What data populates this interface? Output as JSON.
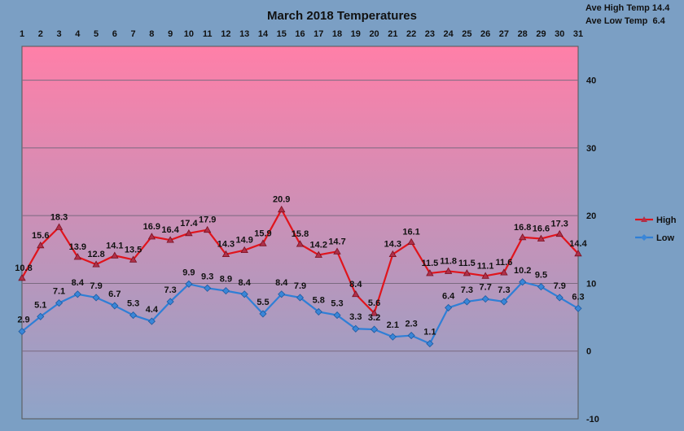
{
  "chart_data": {
    "type": "line",
    "title": "March 2018 Temperatures",
    "stats": [
      "Ave High Temp 14.4",
      "Ave Low Temp  6.4"
    ],
    "x": [
      1,
      2,
      3,
      4,
      5,
      6,
      7,
      8,
      9,
      10,
      11,
      12,
      13,
      14,
      15,
      16,
      17,
      18,
      19,
      20,
      21,
      22,
      23,
      24,
      25,
      26,
      27,
      28,
      29,
      30,
      31
    ],
    "ylim": [
      -10,
      45
    ],
    "yticks": [
      -10,
      0,
      10,
      20,
      30,
      40
    ],
    "grid": true,
    "legend_position": "right",
    "series": [
      {
        "name": "High",
        "color": "#e0141c",
        "marker": "triangle",
        "values": [
          10.8,
          15.6,
          18.3,
          13.9,
          12.8,
          14.1,
          13.5,
          16.9,
          16.4,
          17.4,
          17.9,
          14.3,
          14.9,
          15.9,
          20.9,
          15.8,
          14.2,
          14.7,
          8.4,
          5.6,
          14.3,
          16.1,
          11.5,
          11.8,
          11.5,
          11.1,
          11.6,
          16.8,
          16.6,
          17.3,
          14.4
        ]
      },
      {
        "name": "Low",
        "color": "#2f7fd6",
        "marker": "diamond",
        "values": [
          2.9,
          5.1,
          7.1,
          8.4,
          7.9,
          6.7,
          5.3,
          4.4,
          7.3,
          9.9,
          9.3,
          8.9,
          8.4,
          5.5,
          8.4,
          7.9,
          5.8,
          5.3,
          3.3,
          3.2,
          2.1,
          2.3,
          1.1,
          6.4,
          7.3,
          7.7,
          7.3,
          10.2,
          9.5,
          7.9,
          6.3
        ]
      }
    ]
  },
  "colors": {
    "background": "#7b9fc4",
    "plot_top": "#ff7fa8",
    "plot_bottom": "#8ea4c8",
    "grid": "#7a6a80"
  }
}
